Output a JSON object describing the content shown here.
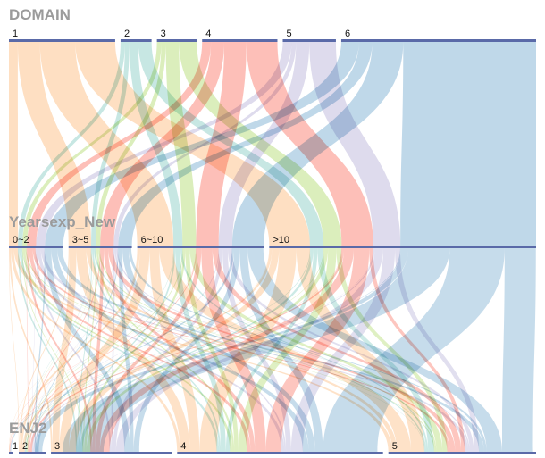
{
  "chart_data": {
    "type": "parallel-sets",
    "dimensions": [
      {
        "name": "DOMAIN",
        "categories": [
          "1",
          "2",
          "3",
          "4",
          "5",
          "6"
        ]
      },
      {
        "name": "Yearsexp_New",
        "categories": [
          "0~2",
          "3~5",
          "6~10",
          ">10"
        ]
      },
      {
        "name": "ENJ2",
        "categories": [
          "1",
          "2",
          "3",
          "4",
          "5"
        ]
      }
    ],
    "color_by": "DOMAIN",
    "colors": {
      "1": "#fdbf85",
      "2": "#8fd0c8",
      "3": "#b8de7a",
      "4": "#fb8072",
      "5": "#bdb8dc",
      "6": "#80b1d3"
    },
    "category_totals": {
      "DOMAIN": [
        24,
        7,
        9,
        17,
        12,
        44
      ],
      "Yearsexp_New": [
        12,
        14,
        28,
        59
      ],
      "ENJ2": [
        1,
        6,
        27,
        46,
        33
      ]
    },
    "flows": [
      {
        "DOMAIN": "1",
        "Yearsexp_New": "0~2",
        "weight": 2
      },
      {
        "DOMAIN": "1",
        "Yearsexp_New": "3~5",
        "weight": 5
      },
      {
        "DOMAIN": "1",
        "Yearsexp_New": "6~10",
        "weight": 8
      },
      {
        "DOMAIN": "1",
        "Yearsexp_New": ">10",
        "weight": 9
      },
      {
        "DOMAIN": "2",
        "Yearsexp_New": "0~2",
        "weight": 1
      },
      {
        "DOMAIN": "2",
        "Yearsexp_New": "3~5",
        "weight": 1
      },
      {
        "DOMAIN": "2",
        "Yearsexp_New": "6~10",
        "weight": 2
      },
      {
        "DOMAIN": "2",
        "Yearsexp_New": ">10",
        "weight": 3
      },
      {
        "DOMAIN": "3",
        "Yearsexp_New": "0~2",
        "weight": 1
      },
      {
        "DOMAIN": "3",
        "Yearsexp_New": "3~5",
        "weight": 1
      },
      {
        "DOMAIN": "3",
        "Yearsexp_New": "6~10",
        "weight": 3
      },
      {
        "DOMAIN": "3",
        "Yearsexp_New": ">10",
        "weight": 4
      },
      {
        "DOMAIN": "4",
        "Yearsexp_New": "0~2",
        "weight": 2
      },
      {
        "DOMAIN": "4",
        "Yearsexp_New": "3~5",
        "weight": 3
      },
      {
        "DOMAIN": "4",
        "Yearsexp_New": "6~10",
        "weight": 5
      },
      {
        "DOMAIN": "4",
        "Yearsexp_New": ">10",
        "weight": 7
      },
      {
        "DOMAIN": "5",
        "Yearsexp_New": "0~2",
        "weight": 2
      },
      {
        "DOMAIN": "5",
        "Yearsexp_New": "3~5",
        "weight": 1
      },
      {
        "DOMAIN": "5",
        "Yearsexp_New": "6~10",
        "weight": 3
      },
      {
        "DOMAIN": "5",
        "Yearsexp_New": ">10",
        "weight": 6
      },
      {
        "DOMAIN": "6",
        "Yearsexp_New": "0~2",
        "weight": 4
      },
      {
        "DOMAIN": "6",
        "Yearsexp_New": "3~5",
        "weight": 3
      },
      {
        "DOMAIN": "6",
        "Yearsexp_New": "6~10",
        "weight": 7
      },
      {
        "DOMAIN": "6",
        "Yearsexp_New": ">10",
        "weight": 30
      }
    ]
  }
}
